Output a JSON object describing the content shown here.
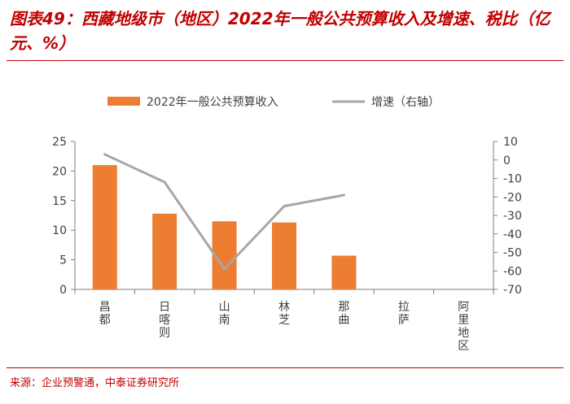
{
  "header": {
    "title": "图表49：西藏地级市（地区）2022年一般公共预算收入及增速、税比（亿元、%）"
  },
  "footer": {
    "source": "来源：企业预警通，中泰证券研究所"
  },
  "colors": {
    "accent": "#c00000",
    "bar": "#ed7d31",
    "line": "#a6a6a6",
    "axis": "#7f7f7f"
  },
  "chart_data": {
    "type": "bar",
    "categories": [
      "昌都",
      "日喀则",
      "山南",
      "林芝",
      "那曲",
      "拉萨",
      "阿里地区"
    ],
    "series": [
      {
        "name": "2022年一般公共预算收入",
        "type": "bar",
        "axis": "left",
        "values": [
          21.0,
          12.8,
          11.5,
          11.3,
          5.7,
          null,
          null
        ]
      },
      {
        "name": "增速（右轴）",
        "type": "line",
        "axis": "right",
        "values": [
          3,
          -12,
          -59,
          -25,
          -19,
          null,
          null
        ]
      }
    ],
    "ylim": [
      0,
      25
    ],
    "yticks": [
      0,
      5,
      10,
      15,
      20,
      25
    ],
    "y2lim": [
      -70,
      10
    ],
    "y2ticks": [
      10,
      0,
      -10,
      -20,
      -30,
      -40,
      -50,
      -60,
      -70
    ],
    "legend_position": "top",
    "grid": false
  }
}
